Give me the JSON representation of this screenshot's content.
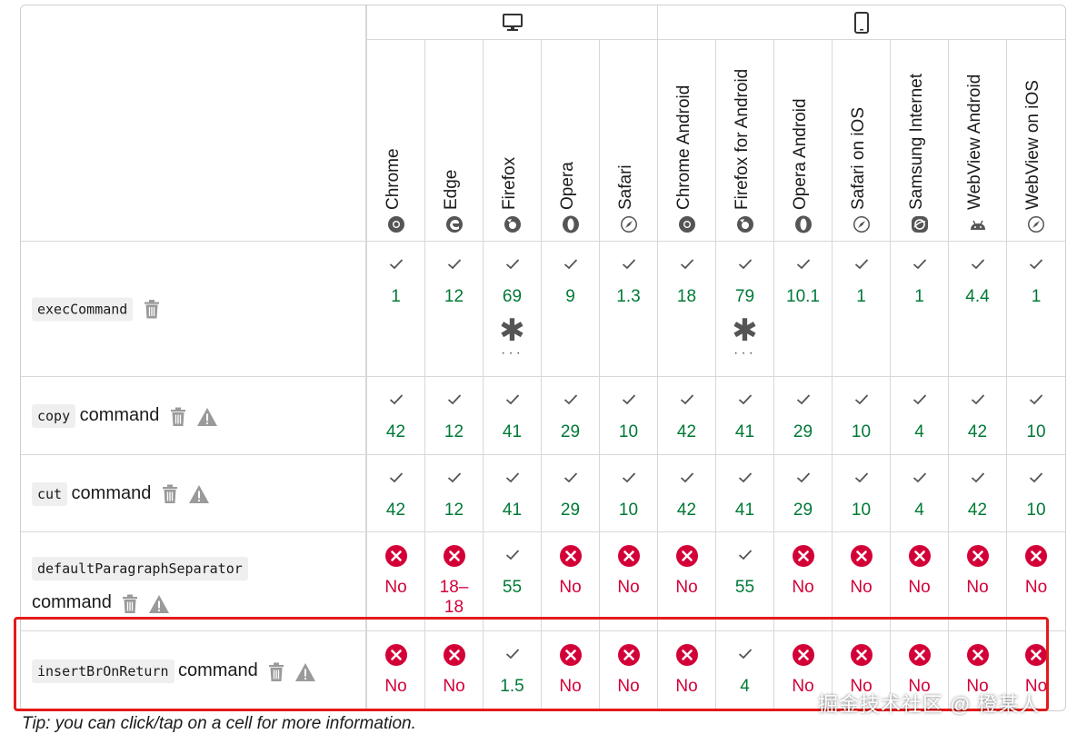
{
  "platforms": {
    "desktop": {
      "icon": "desktop-icon"
    },
    "mobile": {
      "icon": "mobile-icon"
    }
  },
  "browsers": [
    {
      "name": "Chrome",
      "icon": "chrome-icon"
    },
    {
      "name": "Edge",
      "icon": "edge-icon"
    },
    {
      "name": "Firefox",
      "icon": "firefox-icon"
    },
    {
      "name": "Opera",
      "icon": "opera-icon"
    },
    {
      "name": "Safari",
      "icon": "safari-icon"
    },
    {
      "name": "Chrome Android",
      "icon": "chrome-icon"
    },
    {
      "name": "Firefox for Android",
      "icon": "firefox-icon"
    },
    {
      "name": "Opera Android",
      "icon": "opera-icon"
    },
    {
      "name": "Safari on iOS",
      "icon": "safari-icon"
    },
    {
      "name": "Samsung Internet",
      "icon": "samsung-icon"
    },
    {
      "name": "WebView Android",
      "icon": "android-icon"
    },
    {
      "name": "WebView on iOS",
      "icon": "safari-icon"
    }
  ],
  "features": [
    {
      "code": "execCommand",
      "suffix": "",
      "support": [
        {
          "s": "yes",
          "v": "1"
        },
        {
          "s": "yes",
          "v": "12"
        },
        {
          "s": "yes",
          "v": "69",
          "notes": true
        },
        {
          "s": "yes",
          "v": "9"
        },
        {
          "s": "yes",
          "v": "1.3"
        },
        {
          "s": "yes",
          "v": "18"
        },
        {
          "s": "yes",
          "v": "79",
          "notes": true
        },
        {
          "s": "yes",
          "v": "10.1"
        },
        {
          "s": "yes",
          "v": "1"
        },
        {
          "s": "yes",
          "v": "1"
        },
        {
          "s": "yes",
          "v": "4.4"
        },
        {
          "s": "yes",
          "v": "1"
        }
      ]
    },
    {
      "code": "copy",
      "suffix": "command",
      "support": [
        {
          "s": "yes",
          "v": "42"
        },
        {
          "s": "yes",
          "v": "12"
        },
        {
          "s": "yes",
          "v": "41"
        },
        {
          "s": "yes",
          "v": "29"
        },
        {
          "s": "yes",
          "v": "10"
        },
        {
          "s": "yes",
          "v": "42"
        },
        {
          "s": "yes",
          "v": "41"
        },
        {
          "s": "yes",
          "v": "29"
        },
        {
          "s": "yes",
          "v": "10"
        },
        {
          "s": "yes",
          "v": "4"
        },
        {
          "s": "yes",
          "v": "42"
        },
        {
          "s": "yes",
          "v": "10"
        }
      ]
    },
    {
      "code": "cut",
      "suffix": "command",
      "support": [
        {
          "s": "yes",
          "v": "42"
        },
        {
          "s": "yes",
          "v": "12"
        },
        {
          "s": "yes",
          "v": "41"
        },
        {
          "s": "yes",
          "v": "29"
        },
        {
          "s": "yes",
          "v": "10"
        },
        {
          "s": "yes",
          "v": "42"
        },
        {
          "s": "yes",
          "v": "41"
        },
        {
          "s": "yes",
          "v": "29"
        },
        {
          "s": "yes",
          "v": "10"
        },
        {
          "s": "yes",
          "v": "4"
        },
        {
          "s": "yes",
          "v": "42"
        },
        {
          "s": "yes",
          "v": "10"
        }
      ]
    },
    {
      "code": "defaultParagraphSeparator",
      "suffix": "command",
      "support": [
        {
          "s": "no",
          "v": "No"
        },
        {
          "s": "no",
          "v": "18–18"
        },
        {
          "s": "yes",
          "v": "55"
        },
        {
          "s": "no",
          "v": "No"
        },
        {
          "s": "no",
          "v": "No"
        },
        {
          "s": "no",
          "v": "No"
        },
        {
          "s": "yes",
          "v": "55"
        },
        {
          "s": "no",
          "v": "No"
        },
        {
          "s": "no",
          "v": "No"
        },
        {
          "s": "no",
          "v": "No"
        },
        {
          "s": "no",
          "v": "No"
        },
        {
          "s": "no",
          "v": "No"
        }
      ]
    },
    {
      "code": "insertBrOnReturn",
      "suffix": "command",
      "support": [
        {
          "s": "no",
          "v": "No"
        },
        {
          "s": "no",
          "v": "No"
        },
        {
          "s": "yes",
          "v": "1.5"
        },
        {
          "s": "no",
          "v": "No"
        },
        {
          "s": "no",
          "v": "No"
        },
        {
          "s": "no",
          "v": "No"
        },
        {
          "s": "yes",
          "v": "4"
        },
        {
          "s": "no",
          "v": "No"
        },
        {
          "s": "no",
          "v": "No"
        },
        {
          "s": "no",
          "v": "No"
        },
        {
          "s": "no",
          "v": "No"
        },
        {
          "s": "no",
          "v": "No"
        }
      ]
    }
  ],
  "notes_symbol": "✱",
  "notes_dots": "···",
  "tip": "Tip: you can click/tap on a cell for more information.",
  "watermark": "掘金技术社区 @ 橙某人",
  "colors": {
    "yes": "#007936",
    "no": "#d30038",
    "highlight": "#e31b1b"
  }
}
